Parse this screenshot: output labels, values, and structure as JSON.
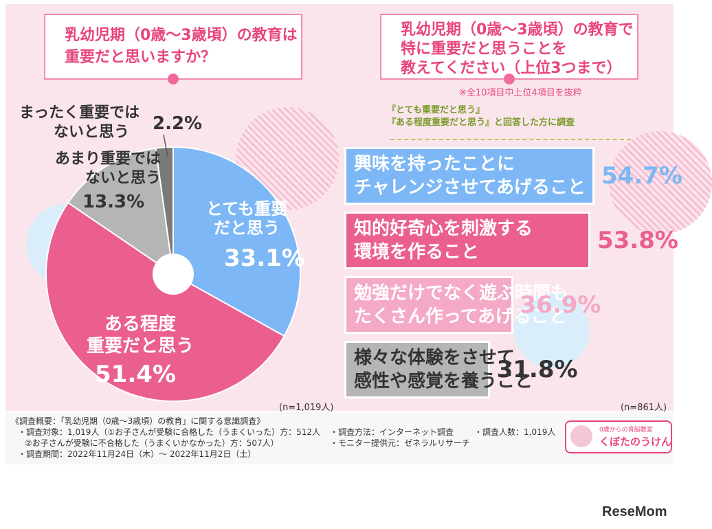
{
  "left": {
    "question": [
      "乳幼児期（0歳〜3歳頃）の教育は",
      "重要だと思いますか？"
    ],
    "sample": "(n=1,019人)"
  },
  "right": {
    "question": [
      "乳幼児期（0歳〜3歳頃）の教育で",
      "特に重要だと思うことを",
      "教えてください（上位3つまで）"
    ],
    "note": "※全10項目中上位4項目を抜粋",
    "condition": [
      "『とても重要だと思う』",
      "『ある程度重要だと思う』と回答した方に調査"
    ],
    "sample": "(n=861人)"
  },
  "chart_data": [
    {
      "type": "pie",
      "title": "乳幼児期（0歳〜3歳頃）の教育は重要だと思いますか？",
      "slices": [
        {
          "label": "とても重要だと思う",
          "value": 33.1,
          "display": "33.1%",
          "color": "#7db7f5"
        },
        {
          "label": "ある程度重要だと思う",
          "value": 51.4,
          "display": "51.4%",
          "color": "#ea5f8f"
        },
        {
          "label": "あまり重要ではないと思う",
          "value": 13.3,
          "display": "13.3%",
          "color": "#b5b5b5"
        },
        {
          "label": "まったく重要ではないと思う",
          "value": 2.2,
          "display": "2.2%",
          "color": "#7a7a7a"
        }
      ]
    },
    {
      "type": "bar",
      "title": "乳幼児期（0歳〜3歳頃）の教育で特に重要だと思うことを教えてください（上位3つまで）",
      "categories": [
        [
          "興味を持ったことに",
          "チャレンジさせてあげること"
        ],
        [
          "知的好奇心を刺激する",
          "環境を作ること"
        ],
        [
          "勉強だけでなく遊ぶ時間も",
          "たくさん作ってあげること"
        ],
        [
          "様々な体験をさせて",
          "感性や感覚を養うこと"
        ]
      ],
      "values": [
        54.7,
        53.8,
        36.9,
        31.8
      ],
      "display": [
        "54.7%",
        "53.8%",
        "36.9%",
        "31.8%"
      ],
      "colors": [
        "#7db7f5",
        "#ea5f8f",
        "#f4aac6",
        "#b5b5b5"
      ],
      "text_colors": [
        "#ffffff",
        "#ffffff",
        "#ffffff",
        "#333333"
      ],
      "value_colors": [
        "#7db7f5",
        "#ea5f8f",
        "#f4aac6",
        "#333333"
      ],
      "xlim": [
        0,
        54.7
      ]
    }
  ],
  "footer": {
    "lines": [
      "《調査概要：「乳幼児期（0歳〜3歳頃）の教育」に関する意識調査》",
      "・調査対象：1,019人（①お子さんが受験に合格した（うまくいった）方：512人",
      "②お子さんが受験に不合格した（うまくいかなかった）方：507人）",
      "・調査期間：2022年11月24日（木）〜 2022年11月2日（土）"
    ],
    "method": "・調査方法：インターネット調査",
    "provider": "・モニター提供元：ゼネラルリサーチ",
    "count": "・調査人数：1,019人",
    "brand_tagline": "0歳からの育脳教室",
    "brand_name": "くぼたのうけん"
  },
  "watermark": "ReseMom"
}
